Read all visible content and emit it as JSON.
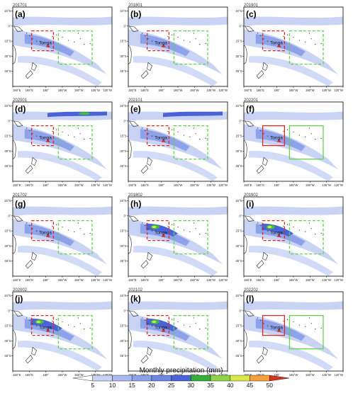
{
  "colors": {
    "ocean": "#ffffff",
    "land_outline": "#222222",
    "red_box": "#e0291e",
    "green_box": "#62d34a",
    "tonga_marker": "#e0291e",
    "precip_light": "#c9d4f5",
    "precip_mid": "#8ea2ea",
    "precip_high": "#4a63d6",
    "precip_green": "#3fbf3a",
    "precip_yellow": "#d8e84a"
  },
  "axes": {
    "lon_ticks": [
      "150°E",
      "165°E",
      "180°",
      "165°W",
      "150°W",
      "135°W",
      "120°W"
    ],
    "lat_ticks": [
      "15°N",
      "0°",
      "15°S",
      "30°S",
      "45°S"
    ]
  },
  "tonga_label": "Tonga",
  "panels": [
    {
      "letter": "(a)",
      "date": "201701",
      "box_style": "dashed",
      "heavy_core": false
    },
    {
      "letter": "(b)",
      "date": "201801",
      "box_style": "dashed",
      "heavy_core": false
    },
    {
      "letter": "(c)",
      "date": "201901",
      "box_style": "dashed",
      "heavy_core": false
    },
    {
      "letter": "(d)",
      "date": "202001",
      "box_style": "dashed",
      "heavy_core": false
    },
    {
      "letter": "(e)",
      "date": "202101",
      "box_style": "dashed",
      "heavy_core": false
    },
    {
      "letter": "(f)",
      "date": "202201",
      "box_style": "solid",
      "heavy_core": false
    },
    {
      "letter": "(g)",
      "date": "201702",
      "box_style": "dashed",
      "heavy_core": false
    },
    {
      "letter": "(h)",
      "date": "201802",
      "box_style": "dashed",
      "heavy_core": true
    },
    {
      "letter": "(i)",
      "date": "201902",
      "box_style": "dashed",
      "heavy_core": true
    },
    {
      "letter": "(j)",
      "date": "202002",
      "box_style": "dashed",
      "heavy_core": true
    },
    {
      "letter": "(k)",
      "date": "202102",
      "box_style": "dashed",
      "heavy_core": true
    },
    {
      "letter": "(l)",
      "date": "202202",
      "box_style": "solid",
      "heavy_core": false
    }
  ],
  "colorbar": {
    "title": "Monthly precipitation (mm)",
    "ticks": [
      "5",
      "10",
      "15",
      "20",
      "25",
      "30",
      "35",
      "40",
      "45",
      "50"
    ],
    "colors": [
      "#ffffff",
      "#c9d4f5",
      "#aab8ef",
      "#8ea2ea",
      "#6c86e2",
      "#4a63d6",
      "#34b03a",
      "#8fd44a",
      "#d8e84a",
      "#f2a13a",
      "#d9331f"
    ]
  }
}
